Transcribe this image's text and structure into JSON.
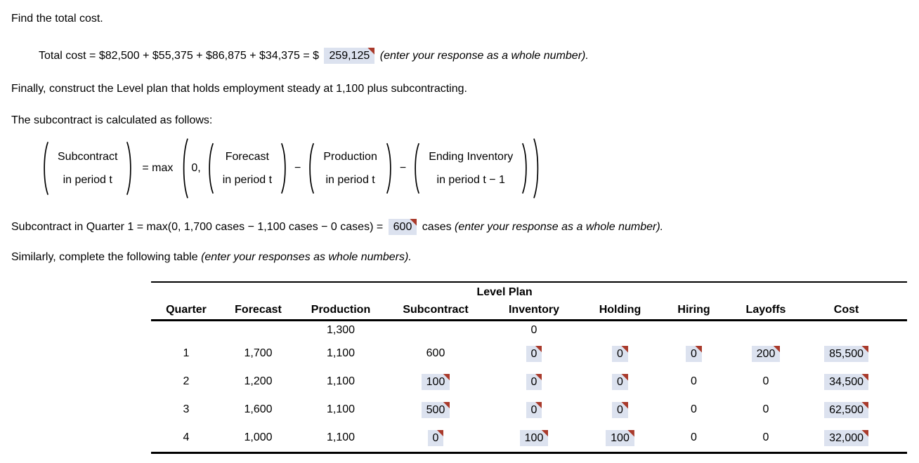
{
  "colors": {
    "answer_bg": "#dce2ef",
    "marker_red": "#a93a2b"
  },
  "texts": {
    "find_total_cost": "Find the total cost.",
    "finally_line": "Finally, construct the Level plan that holds employment steady at 1,100 plus subcontracting.",
    "subcontract_intro": "The subcontract is calculated as follows:"
  },
  "total_cost_line": {
    "prefix": "Total cost = $82,500 + $55,375 + $86,875 + $34,375 = $",
    "answer": "259,125",
    "note": "(enter your response as a whole number)."
  },
  "formula": {
    "lhs_line1": "Subcontract",
    "lhs_line2": "in period t",
    "eq": "= max",
    "zero": "0,",
    "minus": "−",
    "terms": [
      {
        "line1": "Forecast",
        "line2": "in period t"
      },
      {
        "line1": "Production",
        "line2": "in period t"
      },
      {
        "line1": "Ending Inventory",
        "line2": "in period t − 1"
      }
    ]
  },
  "quarter1_line": {
    "prefix": "Subcontract in Quarter 1 = max(0, 1,700 cases − 1,100 cases − 0 cases) =",
    "answer": "600",
    "unit": "cases",
    "note": "(enter your response as a whole number)."
  },
  "table_intro": {
    "prefix": "Similarly, complete the following table",
    "note": "(enter your responses as whole numbers)."
  },
  "table": {
    "title": "Level Plan",
    "headers": [
      "Quarter",
      "Forecast",
      "Production",
      "Subcontract",
      "Inventory",
      "Holding",
      "Hiring",
      "Layoffs",
      "Cost"
    ],
    "rows": [
      {
        "initial": true,
        "cells": [
          {
            "v": ""
          },
          {
            "v": ""
          },
          {
            "v": "1,300"
          },
          {
            "v": ""
          },
          {
            "v": "0"
          },
          {
            "v": ""
          },
          {
            "v": ""
          },
          {
            "v": ""
          },
          {
            "v": ""
          }
        ]
      },
      {
        "cells": [
          {
            "v": "1"
          },
          {
            "v": "1,700"
          },
          {
            "v": "1,100"
          },
          {
            "v": "600"
          },
          {
            "v": "0",
            "hl": true
          },
          {
            "v": "0",
            "hl": true
          },
          {
            "v": "0",
            "hl": true
          },
          {
            "v": "200",
            "hl": true
          },
          {
            "v": "85,500",
            "hl": true
          }
        ]
      },
      {
        "cells": [
          {
            "v": "2"
          },
          {
            "v": "1,200"
          },
          {
            "v": "1,100"
          },
          {
            "v": "100",
            "hl": true
          },
          {
            "v": "0",
            "hl": true
          },
          {
            "v": "0",
            "hl": true
          },
          {
            "v": "0"
          },
          {
            "v": "0"
          },
          {
            "v": "34,500",
            "hl": true
          }
        ]
      },
      {
        "cells": [
          {
            "v": "3"
          },
          {
            "v": "1,600"
          },
          {
            "v": "1,100"
          },
          {
            "v": "500",
            "hl": true
          },
          {
            "v": "0",
            "hl": true
          },
          {
            "v": "0",
            "hl": true
          },
          {
            "v": "0"
          },
          {
            "v": "0"
          },
          {
            "v": "62,500",
            "hl": true
          }
        ]
      },
      {
        "cells": [
          {
            "v": "4"
          },
          {
            "v": "1,000"
          },
          {
            "v": "1,100"
          },
          {
            "v": "0",
            "hl": true
          },
          {
            "v": "100",
            "hl": true
          },
          {
            "v": "100",
            "hl": true
          },
          {
            "v": "0"
          },
          {
            "v": "0"
          },
          {
            "v": "32,000",
            "hl": true
          }
        ]
      }
    ]
  }
}
